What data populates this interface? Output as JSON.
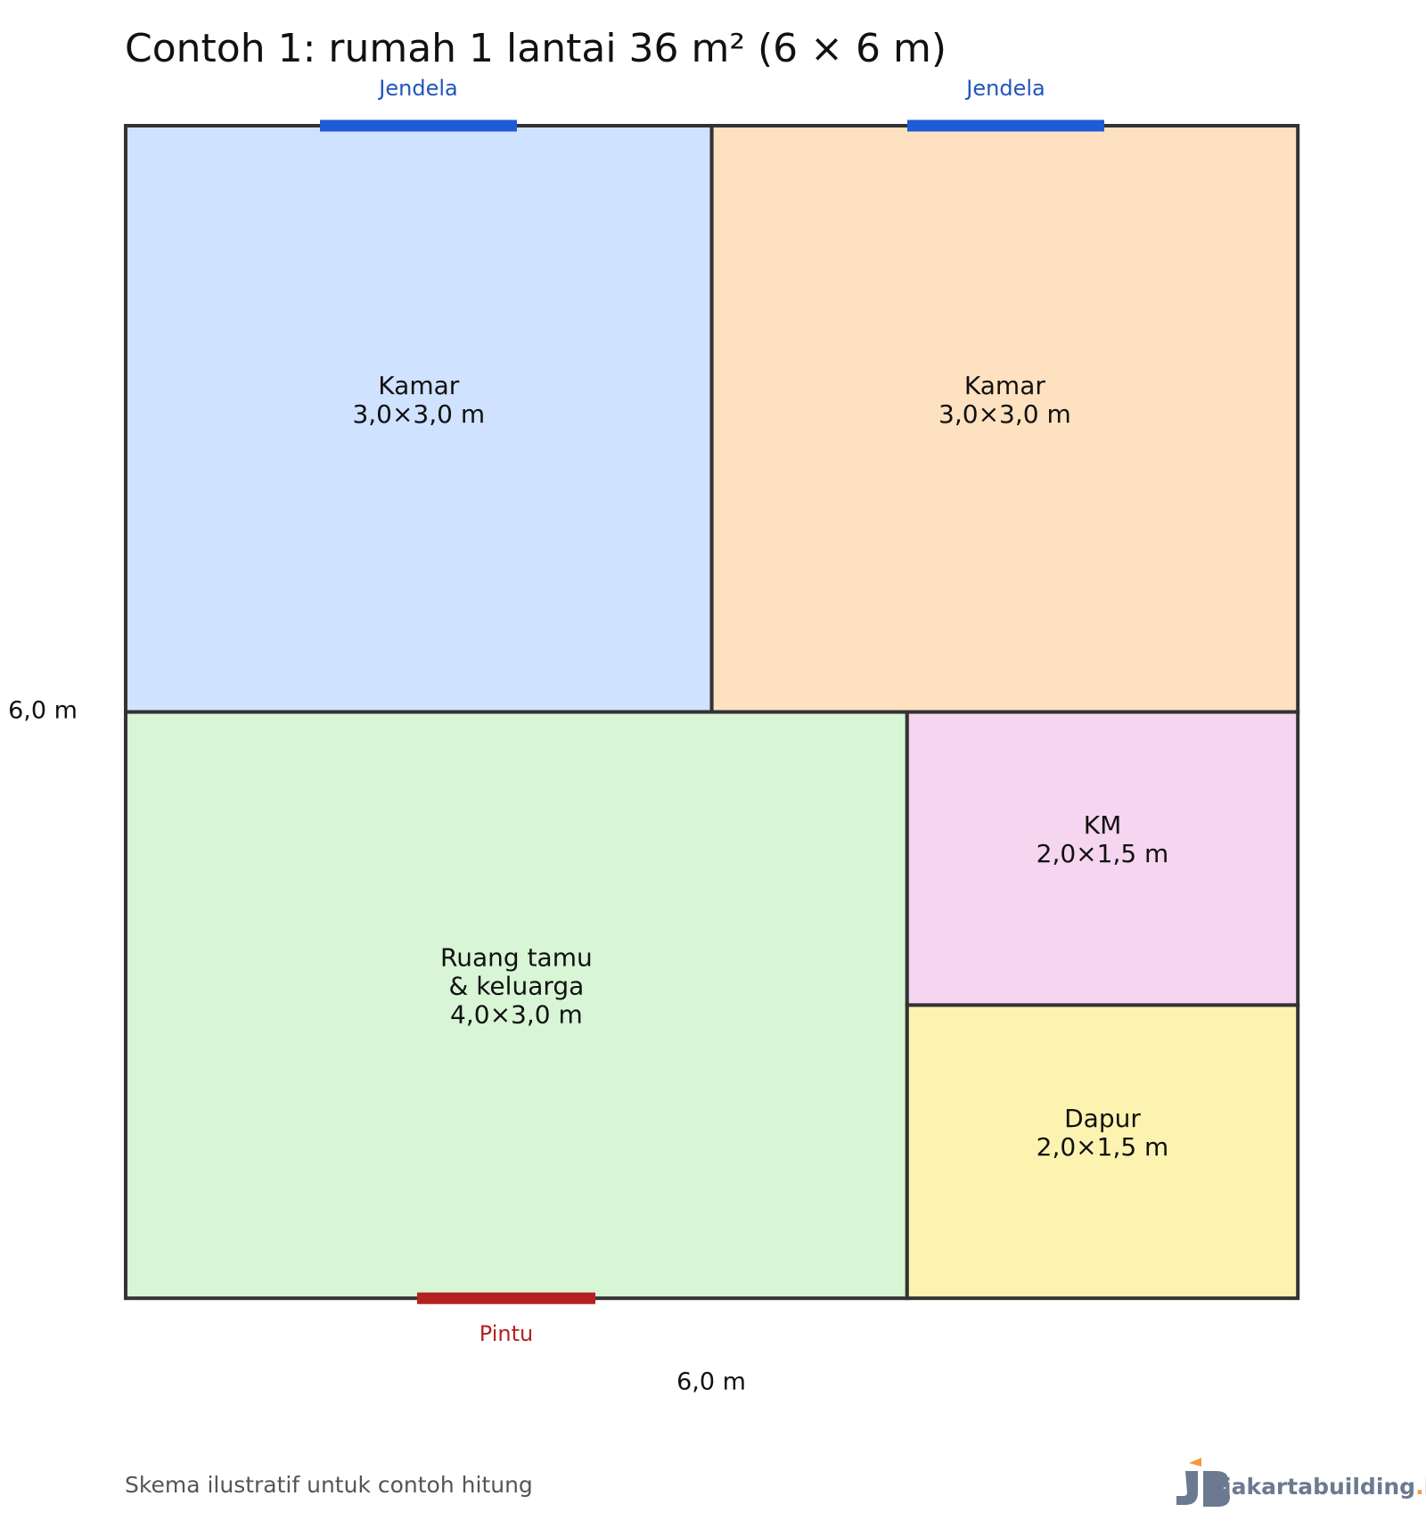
{
  "header": {
    "title": "Contoh 1: rumah 1 lantai 36 m² (6 × 6 m)"
  },
  "rooms": [
    {
      "lines": [
        "Kamar",
        "3,0×3,0 m"
      ],
      "color": "#cfe2ff"
    },
    {
      "lines": [
        "Kamar",
        "3,0×3,0 m"
      ],
      "color": "#fde1c0"
    },
    {
      "lines": [
        "Ruang tamu",
        "& keluarga",
        "4,0×3,0 m"
      ],
      "color": "#d8f5d6"
    },
    {
      "lines": [
        "KM",
        "2,0×1,5 m"
      ],
      "color": "#f5d5ef"
    },
    {
      "lines": [
        "Dapur",
        "2,0×1,5 m"
      ],
      "color": "#fdf3b0"
    }
  ],
  "windows": [
    {
      "label": "Jendela"
    },
    {
      "label": "Jendela"
    }
  ],
  "door": {
    "label": "Pintu"
  },
  "dimensions": {
    "width": "6,0 m",
    "height": "6,0 m"
  },
  "footer": {
    "note": "Skema ilustratif untuk contoh hitung",
    "logo": "jakartabuilding",
    "logo_suffix": ".id"
  }
}
